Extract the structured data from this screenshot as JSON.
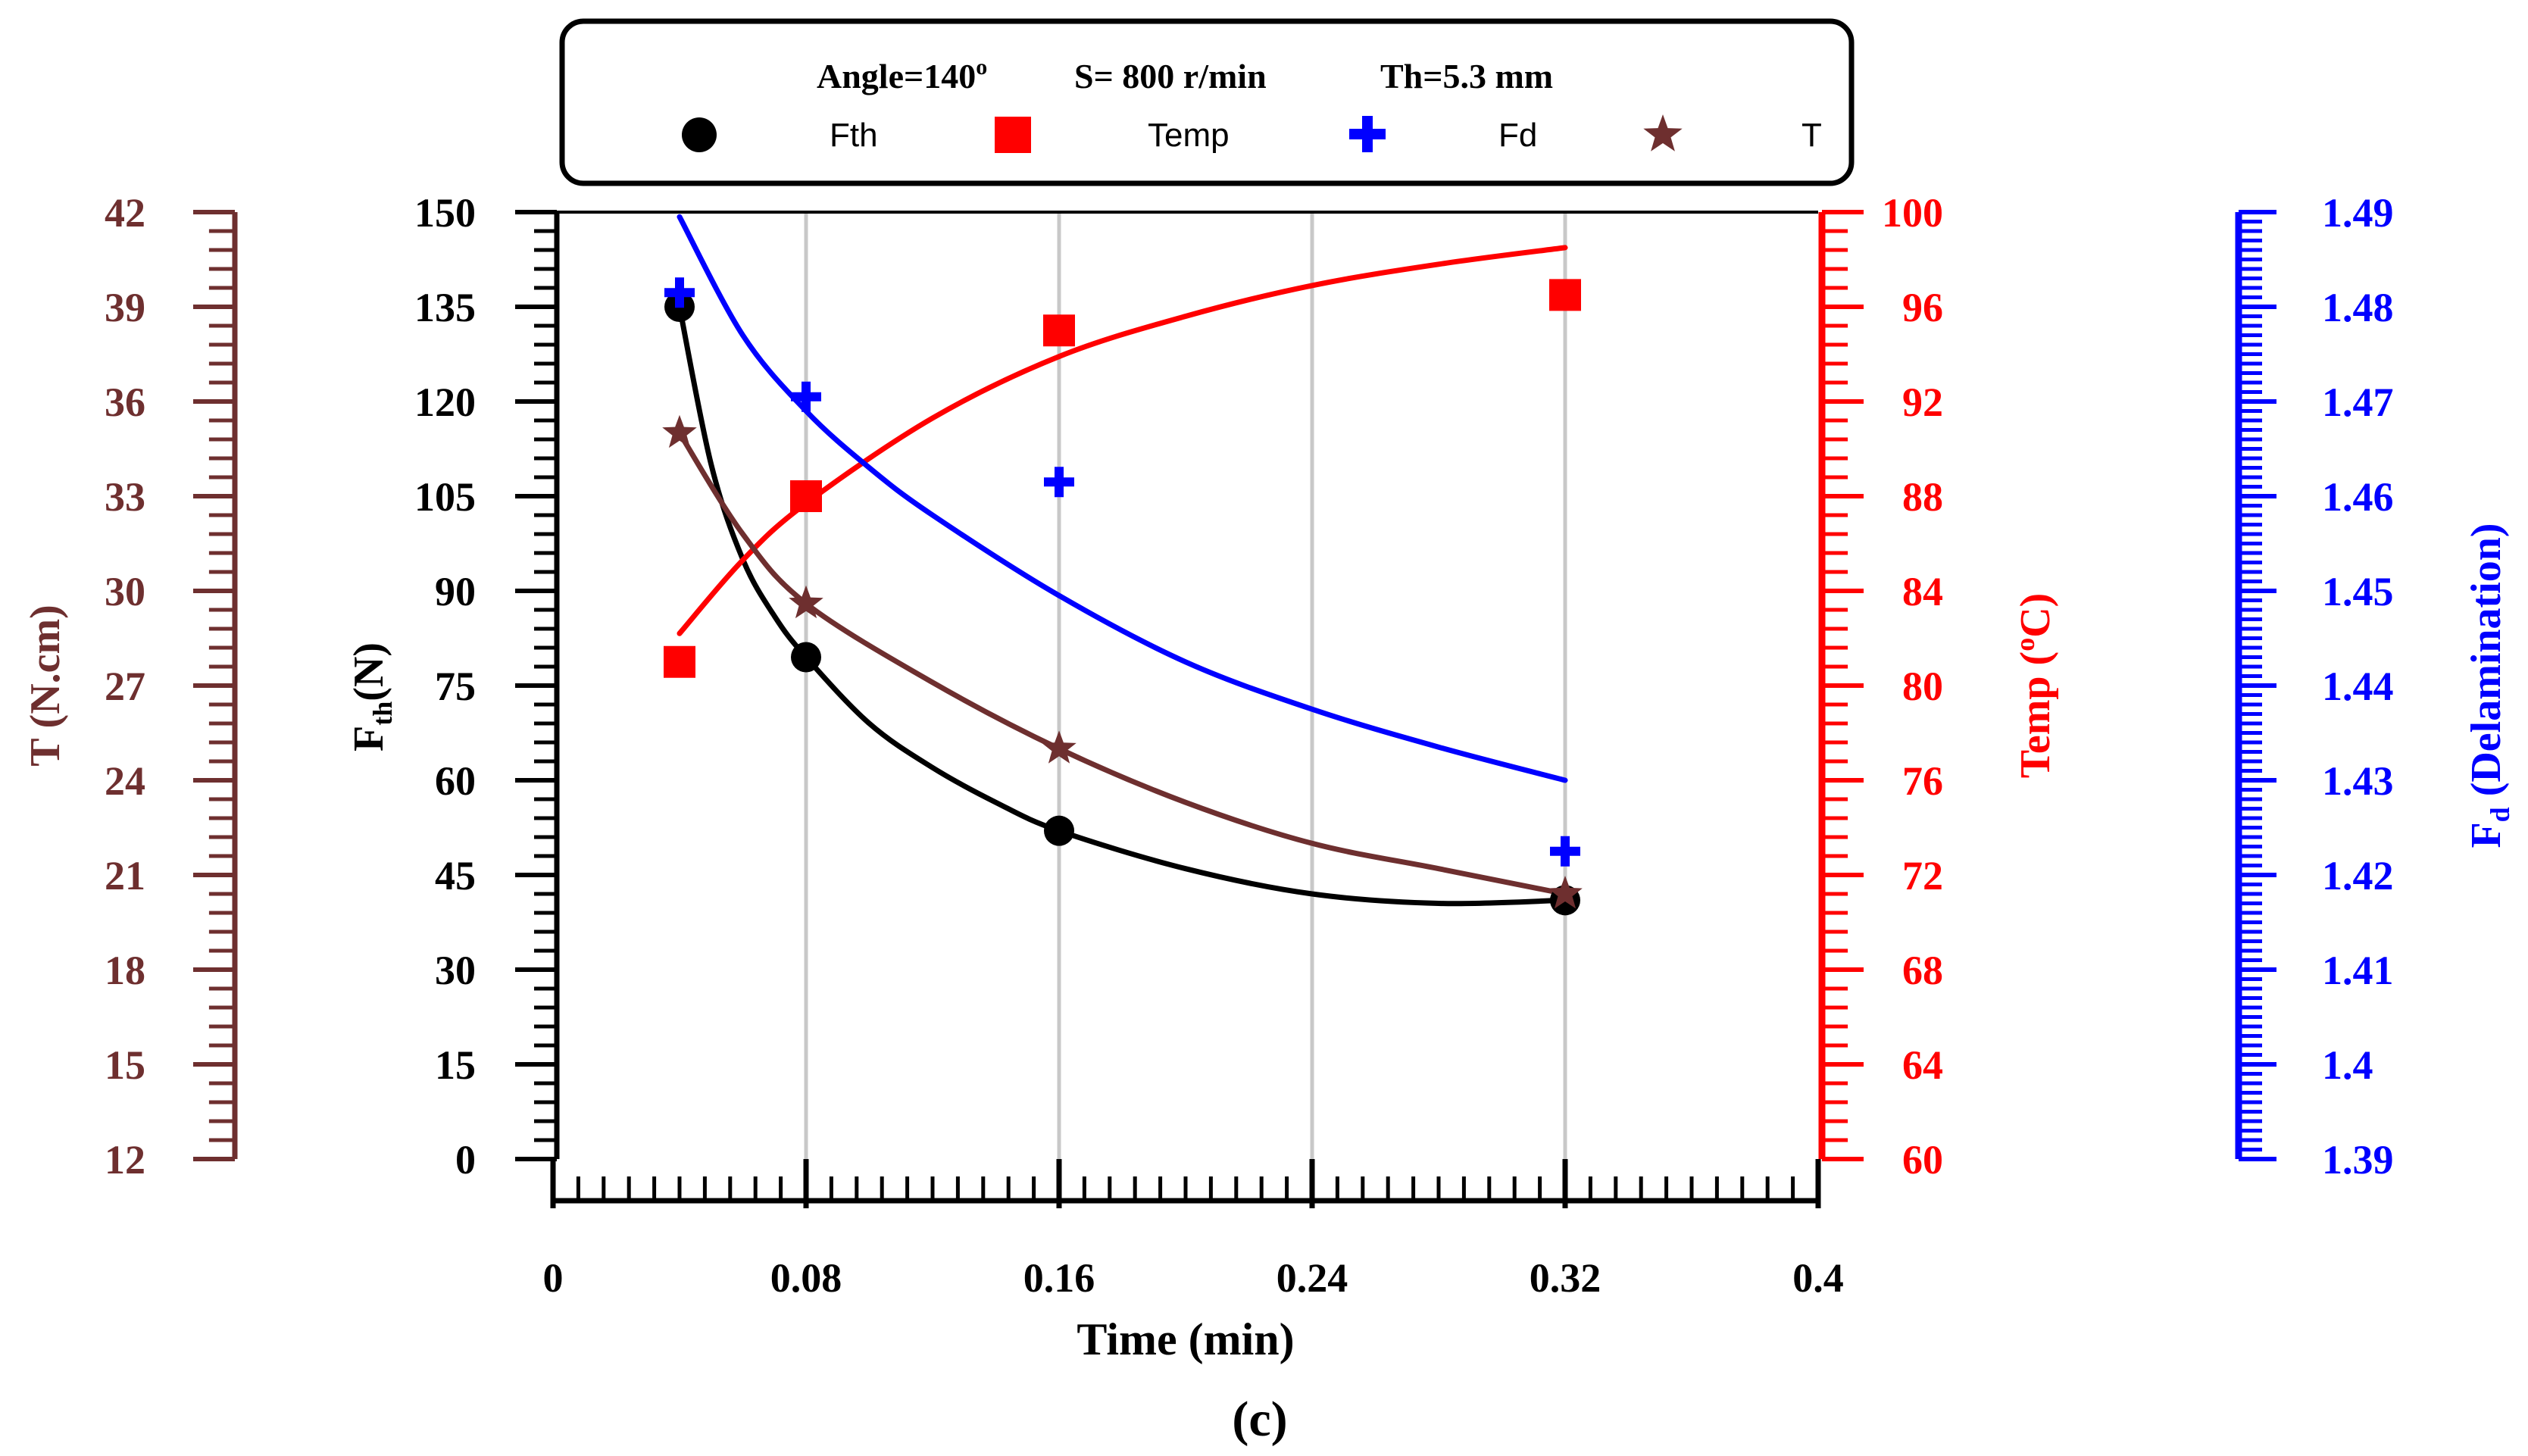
{
  "chart_data": {
    "type": "scatter",
    "legend": {
      "placement": "top-center",
      "conditions": [
        "Angle=140",
        "S= 800 r/min",
        "Th=5.3 mm"
      ],
      "angle_superscript": "o",
      "entries": [
        {
          "label": "Fth",
          "marker": "circle",
          "color": "#000000"
        },
        {
          "label": "Temp",
          "marker": "square",
          "color": "#ff0000"
        },
        {
          "label": "Fd",
          "marker": "plus",
          "color": "#0000ff"
        },
        {
          "label": "T",
          "marker": "star",
          "color": "#6e2f2f"
        }
      ]
    },
    "x_axis": {
      "label": "Time (min)",
      "range": [
        0,
        0.4
      ],
      "ticks": [
        "0",
        "0.08",
        "0.16",
        "0.24",
        "0.32",
        "0.4"
      ],
      "tick_values": [
        0,
        0.08,
        0.16,
        0.24,
        0.32,
        0.4
      ]
    },
    "axes": {
      "fth": {
        "label_main": "F",
        "label_sub": "th",
        "label_rest": "(N)",
        "range": [
          0,
          150
        ],
        "ticks": [
          "0",
          "15",
          "30",
          "45",
          "60",
          "75",
          "90",
          "105",
          "120",
          "135",
          "150"
        ],
        "color": "#000000"
      },
      "torque": {
        "label": "T (N.cm)",
        "range": [
          12,
          42
        ],
        "ticks": [
          "12",
          "15",
          "18",
          "21",
          "24",
          "27",
          "30",
          "33",
          "36",
          "39",
          "42"
        ],
        "color": "#6e2f2f"
      },
      "temp": {
        "label_main": "Temp (",
        "label_sup": "o",
        "label_rest": "C)",
        "range": [
          60,
          100
        ],
        "ticks": [
          "60",
          "64",
          "68",
          "72",
          "76",
          "80",
          "84",
          "88",
          "92",
          "96",
          "100"
        ],
        "color": "#ff0000"
      },
      "fd": {
        "label_main": "F",
        "label_sub": "d",
        "label_rest": " (Delamination)",
        "range": [
          1.39,
          1.49
        ],
        "ticks": [
          "1.39",
          "1.4",
          "1.41",
          "1.42",
          "1.43",
          "1.44",
          "1.45",
          "1.46",
          "1.47",
          "1.48",
          "1.49"
        ],
        "color": "#0000ff"
      }
    },
    "grid": "vertical-at-data-x",
    "series": [
      {
        "name": "Fth",
        "axis": "fth",
        "x": [
          0.04,
          0.08,
          0.16,
          0.32
        ],
        "y": [
          135,
          79.5,
          52,
          41
        ],
        "fit": {
          "x": [
            0.04,
            0.05,
            0.06,
            0.07,
            0.08,
            0.1,
            0.12,
            0.14,
            0.16,
            0.2,
            0.24,
            0.28,
            0.32
          ],
          "y": [
            135,
            110,
            95,
            86,
            79.5,
            69,
            62,
            56.5,
            52,
            46,
            42,
            40.5,
            41
          ]
        }
      },
      {
        "name": "Temp",
        "axis": "temp",
        "x": [
          0.04,
          0.08,
          0.16,
          0.32
        ],
        "y": [
          81,
          88,
          95,
          96.5
        ],
        "fit": {
          "x": [
            0.04,
            0.06,
            0.08,
            0.12,
            0.16,
            0.2,
            0.24,
            0.28,
            0.32
          ],
          "y": [
            82.2,
            85.3,
            87.7,
            91.3,
            93.9,
            95.6,
            96.9,
            97.8,
            98.5
          ]
        }
      },
      {
        "name": "Fd",
        "axis": "fd",
        "x": [
          0.04,
          0.08,
          0.16,
          0.32
        ],
        "y": [
          1.4815,
          1.4705,
          1.4615,
          1.4225
        ],
        "fit": {
          "x": [
            0.04,
            0.06,
            0.08,
            0.1,
            0.12,
            0.16,
            0.2,
            0.24,
            0.28,
            0.32
          ],
          "y": [
            1.4895,
            1.477,
            1.469,
            1.463,
            1.458,
            1.4495,
            1.4425,
            1.4375,
            1.4335,
            1.43
          ]
        }
      },
      {
        "name": "T",
        "axis": "torque",
        "x": [
          0.04,
          0.08,
          0.16,
          0.32
        ],
        "y": [
          35,
          29.6,
          25,
          20.4
        ],
        "fit": {
          "x": [
            0.04,
            0.06,
            0.08,
            0.12,
            0.16,
            0.2,
            0.24,
            0.28,
            0.32
          ],
          "y": [
            35,
            31.8,
            29.6,
            27.1,
            25,
            23.3,
            22,
            21.2,
            20.4
          ]
        }
      }
    ]
  },
  "caption": "(c)"
}
